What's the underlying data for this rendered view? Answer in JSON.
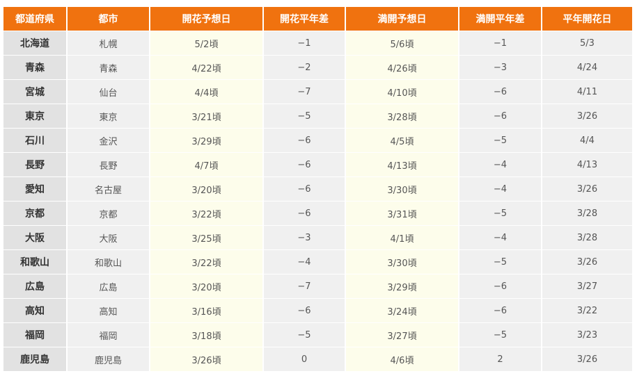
{
  "headers": [
    "都道府県",
    "都市",
    "開花予想日",
    "開花平年差",
    "満開予想日",
    "満開平年差",
    "平年開花日"
  ],
  "rows": [
    [
      "北海道",
      "札幌",
      "5/2頃",
      "−1",
      "5/6頃",
      "−1",
      "5/3"
    ],
    [
      "青森",
      "青森",
      "4/22頃",
      "−2",
      "4/26頃",
      "−3",
      "4/24"
    ],
    [
      "宮城",
      "仙台",
      "4/4頃",
      "−7",
      "4/10頃",
      "−6",
      "4/11"
    ],
    [
      "東京",
      "東京",
      "3/21頃",
      "−5",
      "3/28頃",
      "−6",
      "3/26"
    ],
    [
      "石川",
      "金沢",
      "3/29頃",
      "−6",
      "4/5頃",
      "−5",
      "4/4"
    ],
    [
      "長野",
      "長野",
      "4/7頃",
      "−6",
      "4/13頃",
      "−4",
      "4/13"
    ],
    [
      "愛知",
      "名古屋",
      "3/20頃",
      "−6",
      "3/30頃",
      "−4",
      "3/26"
    ],
    [
      "京都",
      "京都",
      "3/22頃",
      "−6",
      "3/31頃",
      "−5",
      "3/28"
    ],
    [
      "大阪",
      "大阪",
      "3/25頃",
      "−3",
      "4/1頃",
      "−4",
      "3/28"
    ],
    [
      "和歌山",
      "和歌山",
      "3/22頃",
      "−4",
      "3/30頃",
      "−5",
      "3/26"
    ],
    [
      "広島",
      "広島",
      "3/20頃",
      "−7",
      "3/29頃",
      "−6",
      "3/27"
    ],
    [
      "高知",
      "高知",
      "3/16頃",
      "−6",
      "3/24頃",
      "−6",
      "3/22"
    ],
    [
      "福岡",
      "福岡",
      "3/18頃",
      "−5",
      "3/27頃",
      "−5",
      "3/23"
    ],
    [
      "鹿児島",
      "鹿児島",
      "3/26頃",
      "0",
      "4/6頃",
      "2",
      "3/26"
    ]
  ],
  "colors": {
    "header_bg": "#f0720f",
    "header_text": "#ffffff",
    "pref_bg": "#e2e2e2",
    "plain_bg": "#f0f0f0",
    "highlight_bg": "#fdfdeb"
  }
}
